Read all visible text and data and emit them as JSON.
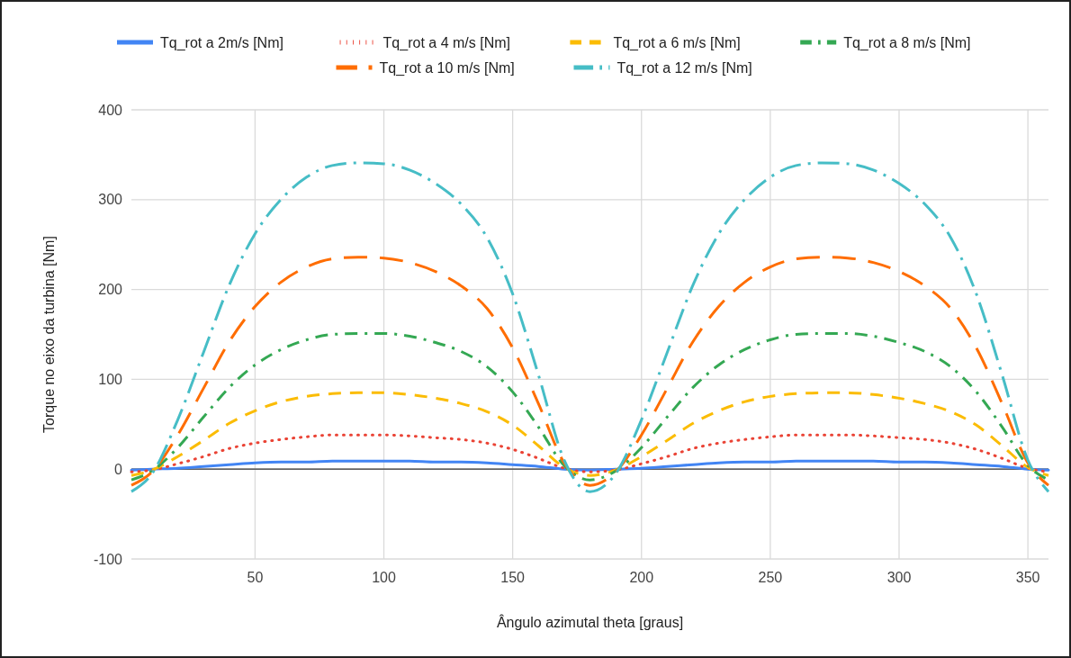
{
  "chart_data": {
    "type": "line",
    "xlabel": "Ângulo azimutal theta [graus]",
    "ylabel": "Torque no eixo da turbina [Nm]",
    "x": [
      2,
      10,
      20,
      30,
      40,
      50,
      60,
      70,
      80,
      90,
      100,
      110,
      120,
      130,
      140,
      150,
      160,
      170,
      180,
      190,
      200,
      210,
      220,
      230,
      240,
      250,
      260,
      270,
      280,
      290,
      300,
      310,
      320,
      330,
      340,
      350,
      358
    ],
    "series": [
      {
        "name": "Tq_rot a 2m/s [Nm]",
        "color": "#4285f4",
        "line_style": "solid",
        "values": [
          -1,
          0,
          1,
          3,
          5,
          7,
          8,
          8,
          9,
          9,
          9,
          9,
          8,
          8,
          7,
          5,
          3,
          0,
          -1,
          0,
          1,
          3,
          5,
          7,
          8,
          8,
          9,
          9,
          9,
          9,
          8,
          8,
          7,
          5,
          3,
          0,
          -1
        ]
      },
      {
        "name": "Tq_rot a 4 m/s [Nm]",
        "color": "#ea4335",
        "line_style": "dotted",
        "values": [
          -3,
          -1,
          6,
          14,
          23,
          29,
          33,
          36,
          38,
          38,
          38,
          37,
          35,
          33,
          29,
          22,
          12,
          1,
          -3,
          -1,
          6,
          14,
          23,
          29,
          33,
          36,
          38,
          38,
          38,
          37,
          35,
          33,
          29,
          22,
          12,
          1,
          -3
        ]
      },
      {
        "name": "Tq_rot a 6 m/s [Nm]",
        "color": "#fbbc04",
        "line_style": "dashed",
        "values": [
          -7,
          -1,
          14,
          32,
          51,
          65,
          75,
          81,
          84,
          85,
          85,
          83,
          79,
          73,
          64,
          49,
          26,
          2,
          -7,
          -1,
          14,
          32,
          51,
          65,
          75,
          81,
          84,
          85,
          85,
          83,
          79,
          73,
          64,
          49,
          26,
          2,
          -7
        ]
      },
      {
        "name": "Tq_rot a 8 m/s [Nm]",
        "color": "#34a853",
        "line_style": "dashdot",
        "values": [
          -12,
          -2,
          24,
          58,
          91,
          116,
          133,
          144,
          150,
          151,
          151,
          148,
          141,
          131,
          114,
          86,
          47,
          4,
          -12,
          -2,
          24,
          58,
          91,
          116,
          133,
          144,
          150,
          151,
          151,
          148,
          141,
          131,
          114,
          86,
          47,
          4,
          -12
        ]
      },
      {
        "name": "Tq_rot a 10 m/s [Nm]",
        "color": "#ff6d01",
        "line_style": "longdash",
        "values": [
          -18,
          -3,
          38,
          90,
          142,
          181,
          208,
          225,
          234,
          236,
          235,
          230,
          220,
          204,
          179,
          135,
          73,
          7,
          -18,
          -3,
          38,
          90,
          142,
          181,
          208,
          225,
          234,
          236,
          235,
          230,
          220,
          204,
          179,
          135,
          73,
          7,
          -18
        ]
      },
      {
        "name": "Tq_rot a 12 m/s [Nm]",
        "color": "#46bdc6",
        "line_style": "longdashdot",
        "values": [
          -25,
          -5,
          55,
          130,
          205,
          262,
          300,
          325,
          338,
          341,
          340,
          333,
          318,
          295,
          258,
          195,
          105,
          10,
          -25,
          -5,
          55,
          130,
          205,
          262,
          300,
          325,
          338,
          341,
          340,
          333,
          318,
          295,
          258,
          195,
          105,
          10,
          -25
        ]
      }
    ],
    "xlim": [
      2,
      358
    ],
    "xticks": [
      50,
      100,
      150,
      200,
      250,
      300,
      350
    ],
    "ylim": [
      -100,
      400
    ],
    "yticks": [
      -100,
      0,
      100,
      200,
      300,
      400
    ],
    "ref_lines": [
      {
        "axis": "y",
        "value": 0,
        "color": "#333333"
      }
    ],
    "grid": true,
    "legend": "top"
  }
}
